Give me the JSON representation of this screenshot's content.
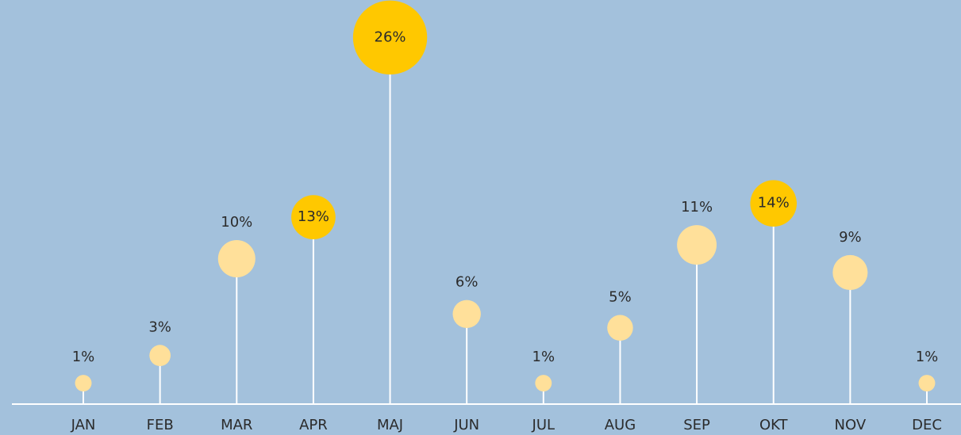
{
  "chart_data": {
    "type": "lollipop",
    "categories": [
      "JAN",
      "FEB",
      "MAR",
      "APR",
      "MAJ",
      "JUN",
      "JUL",
      "AUG",
      "SEP",
      "OKT",
      "NOV",
      "DEC"
    ],
    "values": [
      1,
      3,
      10,
      13,
      26,
      6,
      1,
      5,
      11,
      14,
      9,
      1
    ],
    "value_labels": [
      "1%",
      "3%",
      "10%",
      "13%",
      "26%",
      "6%",
      "1%",
      "5%",
      "11%",
      "14%",
      "9%",
      "1%"
    ],
    "color": "#ffe09a",
    "colors": [
      "#ffe09a",
      "#ffe09a",
      "#ffe09a",
      "#ffc800",
      "#ffc800",
      "#ffe09a",
      "#ffe09a",
      "#ffe09a",
      "#ffe09a",
      "#ffc800",
      "#ffe09a",
      "#ffe09a"
    ]
  }
}
